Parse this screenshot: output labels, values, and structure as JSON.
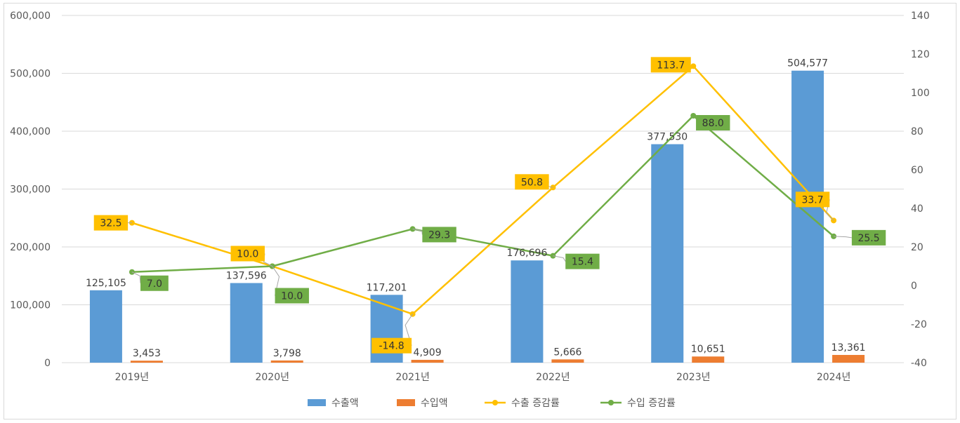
{
  "chart_data": {
    "type": "bar",
    "categories": [
      "2019년",
      "2020년",
      "2021년",
      "2022년",
      "2023년",
      "2024년"
    ],
    "series": [
      {
        "name": "수출액",
        "type": "bar",
        "axis": "left",
        "color": "#5B9BD5",
        "values": [
          125105,
          137596,
          117201,
          176696,
          377530,
          504577
        ],
        "labels": [
          "125,105",
          "137,596",
          "117,201",
          "176,696",
          "377,530",
          "504,577"
        ]
      },
      {
        "name": "수입액",
        "type": "bar",
        "axis": "left",
        "color": "#ED7D31",
        "values": [
          3453,
          3798,
          4909,
          5666,
          10651,
          13361
        ],
        "labels": [
          "3,453",
          "3,798",
          "4,909",
          "5,666",
          "10,651",
          "13,361"
        ]
      },
      {
        "name": "수출 증감률",
        "type": "line",
        "axis": "right",
        "color": "#FFC000",
        "values": [
          32.5,
          10.0,
          -14.8,
          50.8,
          113.7,
          33.7
        ],
        "labels": [
          "32.5",
          "10.0",
          "-14.8",
          "50.8",
          "113.7",
          "33.7"
        ]
      },
      {
        "name": "수입 증감률",
        "type": "line",
        "axis": "right",
        "color": "#70AD47",
        "values": [
          7.0,
          10.0,
          29.3,
          15.4,
          88.0,
          25.5
        ],
        "labels": [
          "7.0",
          "10.0",
          "29.3",
          "15.4",
          "88.0",
          "25.5"
        ]
      }
    ],
    "y_left": {
      "min": 0,
      "max": 600000,
      "step": 100000,
      "ticks": [
        "0",
        "100,000",
        "200,000",
        "300,000",
        "400,000",
        "500,000",
        "600,000"
      ]
    },
    "y_right": {
      "min": -40,
      "max": 140,
      "step": 20,
      "ticks": [
        "-40",
        "-20",
        "0",
        "20",
        "40",
        "60",
        "80",
        "100",
        "120",
        "140"
      ]
    },
    "grid": true,
    "legend_position": "bottom"
  }
}
